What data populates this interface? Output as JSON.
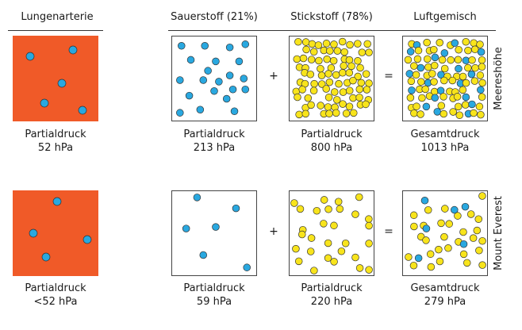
{
  "headers": {
    "artery": "Lungenarterie",
    "oxygen": "Sauerstoff (21%)",
    "nitrogen": "Stickstoff (78%)",
    "mixture": "Luftgemisch"
  },
  "operators": {
    "plus": "+",
    "equals": "="
  },
  "colors": {
    "artery_fill": "#f05a28",
    "oxygen_dot": "#29a8e0",
    "nitrogen_dot": "#f8e41c",
    "dot_stroke": "#333333"
  },
  "rows": [
    {
      "side_label": "Meereshöhe",
      "artery": {
        "label": "Partialdruck",
        "value": "52 hPa"
      },
      "oxygen": {
        "label": "Partialdruck",
        "value": "213 hPa"
      },
      "nitrogen": {
        "label": "Partialdruck",
        "value": "800 hPa"
      },
      "mixture": {
        "label": "Gesamtdruck",
        "value": "1013 hPa"
      }
    },
    {
      "side_label": "Mount Everest",
      "artery": {
        "label": "Partialdruck",
        "value": "<52 hPa"
      },
      "oxygen": {
        "label": "Partialdruck",
        "value": "59 hPa"
      },
      "nitrogen": {
        "label": "Partialdruck",
        "value": "220 hPa"
      },
      "mixture": {
        "label": "Gesamtdruck",
        "value": "279 hPa"
      }
    }
  ]
}
